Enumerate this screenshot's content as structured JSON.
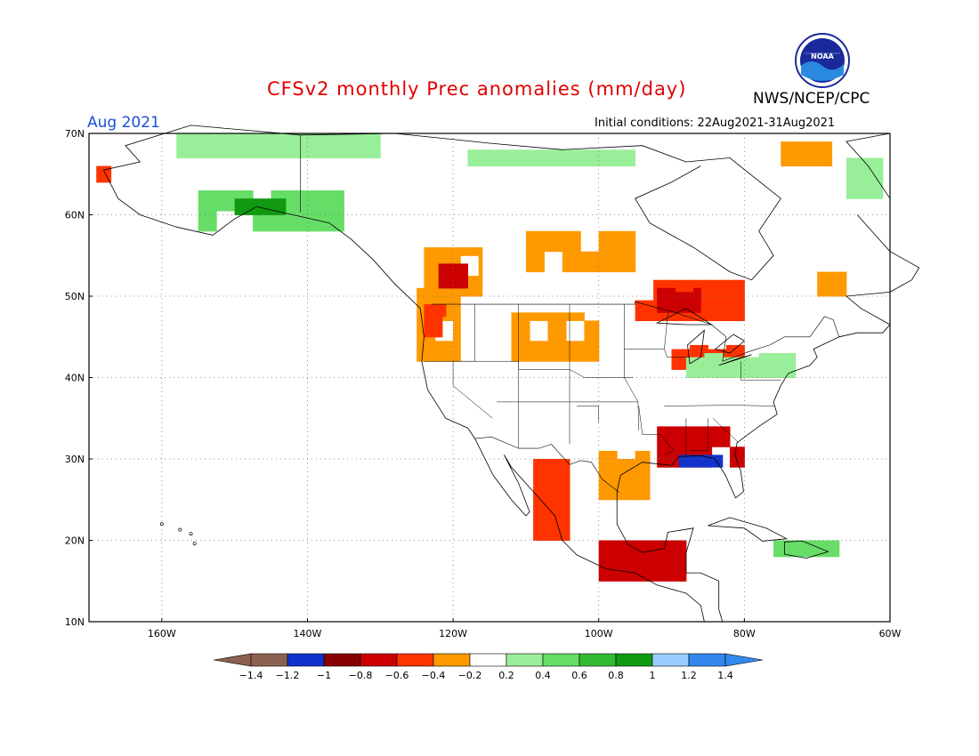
{
  "header": {
    "title": "CFSv2 monthly Prec anomalies (mm/day)",
    "agency": "NWS/NCEP/CPC",
    "logo_text": "NOAA",
    "period": "Aug 2021",
    "initial_conditions": "Initial conditions: 22Aug2021-31Aug2021"
  },
  "map": {
    "projection": "lat-lon",
    "lon_range": [
      -170,
      -60
    ],
    "lat_range": [
      10,
      70
    ],
    "lat_ticks": [
      {
        "value": 70,
        "label": "70N"
      },
      {
        "value": 60,
        "label": "60N"
      },
      {
        "value": 50,
        "label": "50N"
      },
      {
        "value": 40,
        "label": "40N"
      },
      {
        "value": 30,
        "label": "30N"
      },
      {
        "value": 20,
        "label": "20N"
      },
      {
        "value": 10,
        "label": "10N"
      }
    ],
    "lon_ticks": [
      {
        "value": -160,
        "label": "160W"
      },
      {
        "value": -140,
        "label": "140W"
      },
      {
        "value": -120,
        "label": "120W"
      },
      {
        "value": -100,
        "label": "100W"
      },
      {
        "value": -80,
        "label": "80W"
      },
      {
        "value": -60,
        "label": "60W"
      }
    ],
    "grid": "dotted",
    "anomaly_regions": [
      {
        "region": "Pacific Northwest",
        "lon": [
          -125,
          -119
        ],
        "lat": [
          42,
          51
        ],
        "level": "<-0.4",
        "color": "#ff9900"
      },
      {
        "region": "Pacific Northwest core",
        "lon": [
          -124,
          -121
        ],
        "lat": [
          45,
          49
        ],
        "level": "<-0.6",
        "color": "#ff3300"
      },
      {
        "region": "British Columbia interior",
        "lon": [
          -124,
          -116
        ],
        "lat": [
          50,
          56
        ],
        "level": "<-0.4",
        "color": "#ff9900"
      },
      {
        "region": "British Columbia core",
        "lon": [
          -122,
          -118
        ],
        "lat": [
          51,
          54
        ],
        "level": "<-0.8",
        "color": "#cc0000"
      },
      {
        "region": "Northern Plains",
        "lon": [
          -112,
          -100
        ],
        "lat": [
          42,
          48
        ],
        "level": "<-0.4",
        "color": "#ff9900"
      },
      {
        "region": "Ontario",
        "lon": [
          -95,
          -80
        ],
        "lat": [
          47,
          52
        ],
        "level": "<-0.6",
        "color": "#ff3300"
      },
      {
        "region": "Ontario core",
        "lon": [
          -92,
          -86
        ],
        "lat": [
          48,
          51
        ],
        "level": "<-0.8",
        "color": "#cc0000"
      },
      {
        "region": "Great Lakes",
        "lon": [
          -90,
          -80
        ],
        "lat": [
          41,
          44
        ],
        "level": "<-0.6",
        "color": "#ff3300"
      },
      {
        "region": "Canadian Prairies",
        "lon": [
          -110,
          -95
        ],
        "lat": [
          53,
          58
        ],
        "level": "<-0.4",
        "color": "#ff9900"
      },
      {
        "region": "US Southeast Gulf Coast",
        "lon": [
          -92,
          -80
        ],
        "lat": [
          29,
          34
        ],
        "level": "<-0.8",
        "color": "#cc0000"
      },
      {
        "region": "Gulf Coast blue",
        "lon": [
          -89,
          -83
        ],
        "lat": [
          29,
          30.5
        ],
        "level": ">1.2",
        "color": "#1133cc"
      },
      {
        "region": "Texas coast",
        "lon": [
          -100,
          -93
        ],
        "lat": [
          25,
          31
        ],
        "level": "<-0.4",
        "color": "#ff9900"
      },
      {
        "region": "Mexico west coast",
        "lon": [
          -109,
          -104
        ],
        "lat": [
          20,
          30
        ],
        "level": "<-0.6",
        "color": "#ff3300"
      },
      {
        "region": "Southern Mexico",
        "lon": [
          -100,
          -88
        ],
        "lat": [
          15,
          20
        ],
        "level": "<-0.8",
        "color": "#cc0000"
      },
      {
        "region": "Alaska south",
        "lon": [
          -155,
          -135
        ],
        "lat": [
          58,
          63
        ],
        "level": ">0.4",
        "color": "#66dd66"
      },
      {
        "region": "Alaska core",
        "lon": [
          -150,
          -143
        ],
        "lat": [
          60,
          62
        ],
        "level": ">0.8",
        "color": "#119911"
      },
      {
        "region": "Alaska north",
        "lon": [
          -158,
          -130
        ],
        "lat": [
          67,
          70
        ],
        "level": ">0.2",
        "color": "#99ee99"
      },
      {
        "region": "Canadian Arctic",
        "lon": [
          -118,
          -95
        ],
        "lat": [
          66,
          68
        ],
        "level": ">0.2",
        "color": "#99ee99"
      },
      {
        "region": "Eastern US",
        "lon": [
          -88,
          -73
        ],
        "lat": [
          40,
          43
        ],
        "level": ">0.2",
        "color": "#99ee99"
      },
      {
        "region": "Greenland edge",
        "lon": [
          -66,
          -61
        ],
        "lat": [
          62,
          67
        ],
        "level": ">0.2",
        "color": "#99ee99"
      },
      {
        "region": "Caribbean",
        "lon": [
          -76,
          -67
        ],
        "lat": [
          18,
          20
        ],
        "level": ">0.4",
        "color": "#66dd66"
      },
      {
        "region": "Hudson Bay east",
        "lon": [
          -75,
          -68
        ],
        "lat": [
          66,
          69
        ],
        "level": "<-0.4",
        "color": "#ff9900"
      },
      {
        "region": "Labrador",
        "lon": [
          -70,
          -66
        ],
        "lat": [
          50,
          53
        ],
        "level": "<-0.4",
        "color": "#ff9900"
      },
      {
        "region": "Western Alaska dry",
        "lon": [
          -169,
          -167
        ],
        "lat": [
          64,
          66
        ],
        "level": "<-0.6",
        "color": "#ff3300"
      }
    ]
  },
  "legend": {
    "colors": [
      "#8c6050",
      "#1133cc",
      "#880000",
      "#cc0000",
      "#ff3300",
      "#ff9900",
      "#ffffff",
      "#99ee99",
      "#66dd66",
      "#33bb33",
      "#119911",
      "#99ccff",
      "#3388ee"
    ],
    "left_arrow_color": "#8c6050",
    "right_arrow_color": "#3388ee",
    "labels": [
      "−1.4",
      "−1.2",
      "−1",
      "−0.8",
      "−0.6",
      "−0.4",
      "−0.2",
      "0.2",
      "0.4",
      "0.6",
      "0.8",
      "1",
      "1.2",
      "1.4"
    ]
  }
}
